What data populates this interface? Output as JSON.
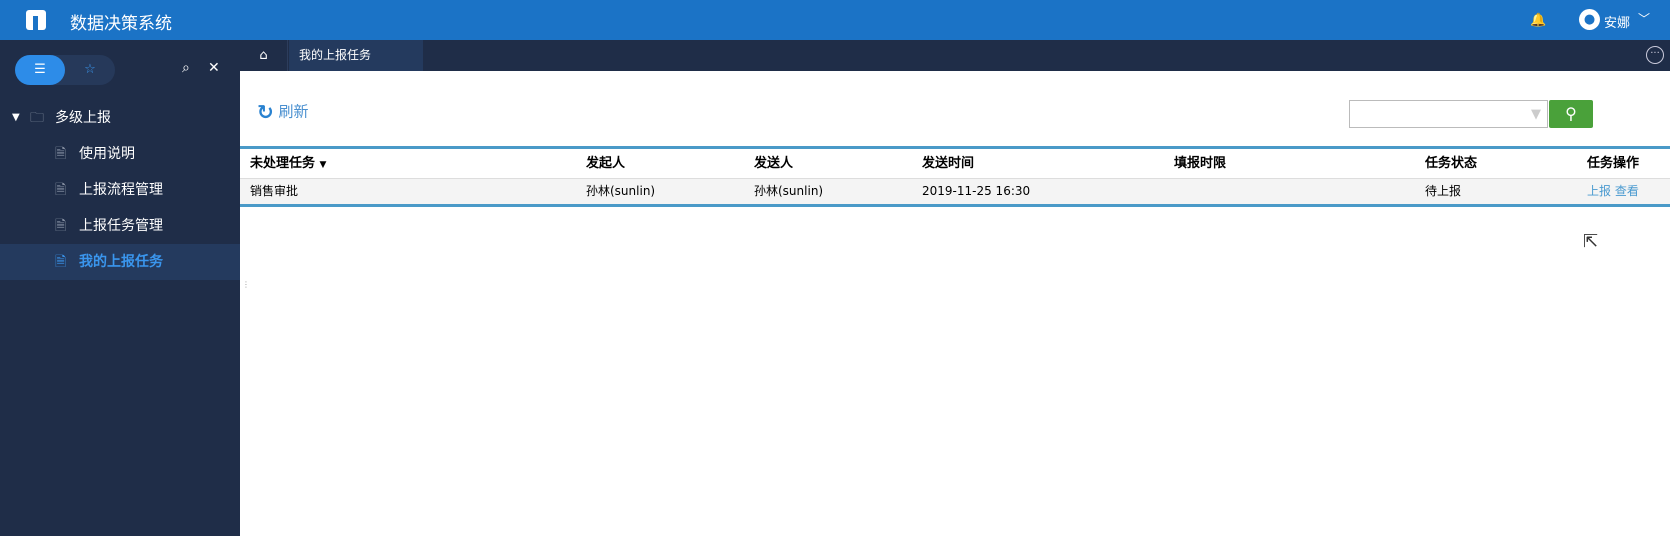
{
  "header": {
    "title": "数据决策系统",
    "user": "安娜",
    "bell_icon": "bell-icon"
  },
  "sidebar": {
    "tree": {
      "folder": "多级上报",
      "items": [
        {
          "label": "使用说明"
        },
        {
          "label": "上报流程管理"
        },
        {
          "label": "上报任务管理"
        },
        {
          "label": "我的上报任务",
          "selected": true
        }
      ]
    }
  },
  "tabs": [
    {
      "label": "我的上报任务"
    }
  ],
  "toolbar": {
    "refresh_label": "刷新",
    "search_value": ""
  },
  "table": {
    "headers": [
      "未处理任务",
      "发起人",
      "发送人",
      "发送时间",
      "填报时限",
      "任务状态",
      "任务操作"
    ],
    "rows": [
      {
        "task": "销售审批",
        "initiator": "孙林(sunlin)",
        "sender": "孙林(sunlin)",
        "time": "2019-11-25 16:30",
        "deadline": "",
        "status": "待上报",
        "action_report": "上报",
        "action_view": "查看"
      }
    ]
  },
  "colors": {
    "header": "#1b73c6",
    "sidebar": "#1f2d48",
    "accent": "#2d8ce8",
    "search_button": "#4aa13a"
  }
}
